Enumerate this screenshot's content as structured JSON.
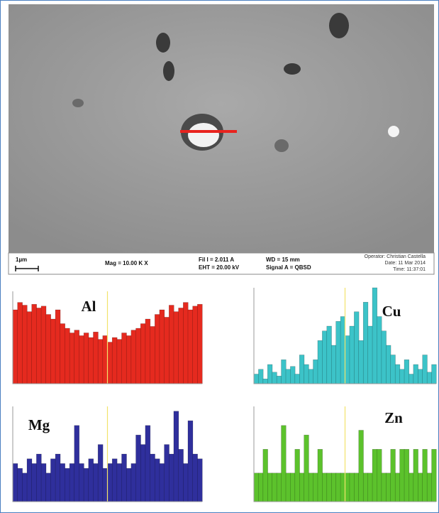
{
  "sem": {
    "scale": "1µm",
    "mag": "Mag = 10.00 K X",
    "fil": "Fil I = 2.011 A",
    "eht": "EHT = 20.00 kV",
    "wd": "WD = 15 mm",
    "signal": "Signal A = QBSD",
    "operator": "Operator: Christian Castella",
    "date": "Date: 11 Mar 2014",
    "time": "Time: 11:37:01"
  },
  "chart_data": [
    {
      "type": "bar",
      "title": "Al",
      "color": "#e52a1f",
      "ylim": [
        0,
        100
      ],
      "values": [
        80,
        88,
        85,
        78,
        86,
        82,
        84,
        75,
        70,
        80,
        65,
        60,
        55,
        58,
        52,
        55,
        50,
        56,
        48,
        52,
        45,
        50,
        48,
        55,
        52,
        58,
        60,
        65,
        70,
        62,
        75,
        80,
        72,
        85,
        78,
        82,
        88,
        80,
        84,
        86
      ]
    },
    {
      "type": "bar",
      "title": "Cu",
      "color": "#3cc3c8",
      "ylim": [
        0,
        100
      ],
      "values": [
        10,
        15,
        5,
        20,
        12,
        8,
        25,
        15,
        18,
        10,
        30,
        20,
        15,
        25,
        45,
        55,
        60,
        40,
        65,
        70,
        50,
        60,
        75,
        45,
        85,
        60,
        100,
        70,
        55,
        40,
        30,
        20,
        15,
        25,
        10,
        20,
        15,
        30,
        12,
        20
      ]
    },
    {
      "type": "bar",
      "title": "Mg",
      "color": "#2f2f9c",
      "ylim": [
        0,
        100
      ],
      "values": [
        40,
        35,
        30,
        45,
        40,
        50,
        40,
        30,
        45,
        50,
        40,
        35,
        40,
        80,
        40,
        35,
        45,
        40,
        60,
        35,
        40,
        45,
        40,
        50,
        35,
        40,
        70,
        60,
        80,
        50,
        45,
        40,
        60,
        50,
        95,
        55,
        40,
        85,
        50,
        45
      ]
    },
    {
      "type": "bar",
      "title": "Zn",
      "color": "#5cc22c",
      "ylim": [
        0,
        100
      ],
      "values": [
        30,
        30,
        55,
        30,
        30,
        30,
        80,
        30,
        30,
        55,
        30,
        70,
        30,
        30,
        55,
        30,
        30,
        30,
        30,
        30,
        30,
        30,
        30,
        75,
        30,
        30,
        55,
        55,
        30,
        30,
        55,
        30,
        55,
        55,
        30,
        55,
        30,
        55,
        30,
        55
      ]
    }
  ]
}
